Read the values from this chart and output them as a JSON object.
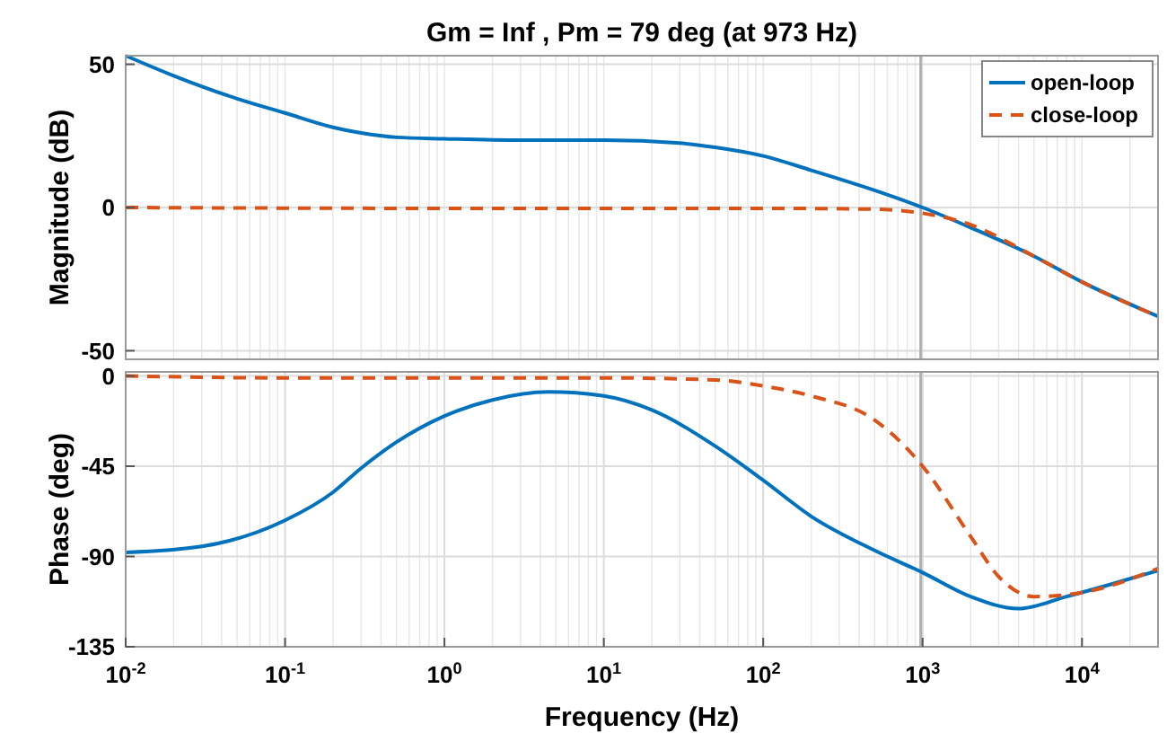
{
  "chart_data": [
    {
      "type": "line",
      "title": "Gm = Inf ,  Pm = 79 deg (at 973 Hz)",
      "ylabel": "Magnitude (dB)",
      "log": "x",
      "grid": true,
      "legend": "top right",
      "tick_labels": "y",
      "xlim": [
        0.01,
        30000
      ],
      "ylim": [
        -53,
        53
      ],
      "yticks": [
        -50,
        0,
        50
      ],
      "ref_lines": [
        {
          "axis": "x",
          "value": 973,
          "color": "#b0b0b0"
        }
      ],
      "series": [
        {
          "name": "open-loop",
          "color": "#0072bd",
          "line_style": "solid",
          "x": [
            0.01,
            0.02,
            0.05,
            0.1,
            0.2,
            0.3,
            0.5,
            1,
            3,
            10,
            30,
            50,
            100,
            200,
            500,
            1000,
            2000,
            5000,
            10000,
            30000
          ],
          "values": [
            53,
            46,
            38,
            33,
            28,
            26,
            24.5,
            24,
            23.5,
            23.5,
            22.5,
            21,
            18,
            13,
            6,
            0,
            -7,
            -17,
            -26,
            -38
          ]
        },
        {
          "name": "close-loop",
          "color": "#d95319",
          "line_style": "dashed",
          "x": [
            0.01,
            1,
            100,
            500,
            1000,
            2000,
            5000,
            10000,
            30000
          ],
          "values": [
            0,
            -0.3,
            -0.3,
            -0.6,
            -2,
            -6,
            -17,
            -26,
            -38
          ]
        }
      ]
    },
    {
      "type": "line",
      "xlabel": "Frequency  (Hz)",
      "ylabel": "Phase (deg)",
      "log": "x",
      "grid": true,
      "xlim": [
        0.01,
        30000
      ],
      "ylim": [
        -135,
        2
      ],
      "yticks": [
        -135,
        -90,
        -45,
        0
      ],
      "xticks": [
        {
          "value": 0.01,
          "label": "10$^{-2}$"
        },
        {
          "value": 0.1,
          "label": "10$^{-1}$"
        },
        {
          "value": 1,
          "label": "10$^{0}$"
        },
        {
          "value": 10,
          "label": "10$^{1}$"
        },
        {
          "value": 100,
          "label": "10$^{2}$"
        },
        {
          "value": 1000,
          "label": "10$^{3}$"
        },
        {
          "value": 10000,
          "label": "10$^{4}$"
        }
      ],
      "ref_lines": [
        {
          "axis": "x",
          "value": 973,
          "color": "#b0b0b0"
        }
      ],
      "series": [
        {
          "color": "#0072bd",
          "line_style": "solid",
          "x": [
            0.01,
            0.03,
            0.1,
            0.2,
            0.3,
            0.5,
            1,
            2,
            4.5,
            10,
            20,
            50,
            100,
            200,
            500,
            1000,
            2000,
            4000,
            8000,
            15000,
            30000
          ],
          "values": [
            -88,
            -85,
            -72,
            -58,
            -46,
            -33,
            -20,
            -12,
            -8,
            -10,
            -17,
            -35,
            -52,
            -70,
            -87,
            -98,
            -110,
            -116,
            -110,
            -104,
            -97
          ]
        },
        {
          "color": "#d95319",
          "line_style": "dashed",
          "x": [
            0.01,
            0.1,
            1,
            10,
            50,
            100,
            200,
            500,
            1000,
            2000,
            3000,
            5000,
            10000,
            30000
          ],
          "values": [
            0,
            -1,
            -1,
            -1,
            -2,
            -5,
            -10,
            -22,
            -45,
            -80,
            -100,
            -110,
            -108,
            -96
          ]
        }
      ]
    }
  ]
}
